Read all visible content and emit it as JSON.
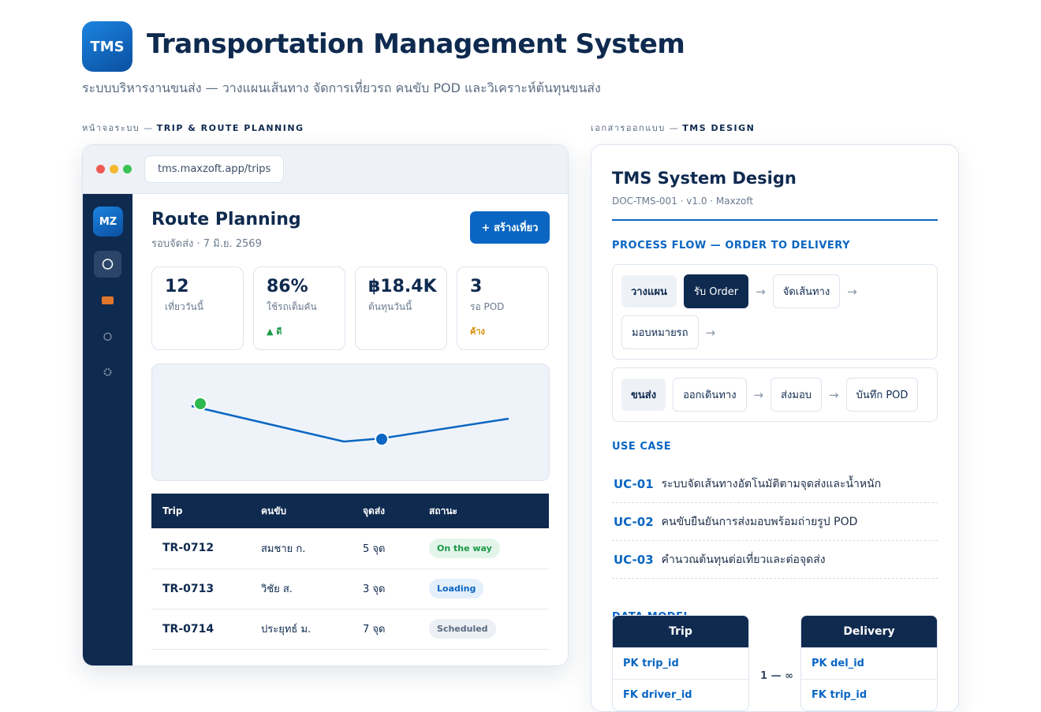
{
  "header": {
    "logo": "TMS",
    "title": "Transportation Management System",
    "subtitle": "ระบบบริหารงานขนส่ง — วางแผนเส้นทาง จัดการเที่ยวรถ คนขับ POD และวิเคราะห์ต้นทุนขนส่ง"
  },
  "left": {
    "label_prefix": "หน้าจอระบบ —",
    "label": "TRIP & ROUTE PLANNING",
    "url": "tms.maxzoft.app/trips",
    "avatar": "MZ",
    "title": "Route Planning",
    "subtitle": "รอบจัดส่ง · 7 มิ.ย. 2569",
    "button": "+ สร้างเที่ยว",
    "kpis": [
      {
        "value": "12",
        "label": "เที่ยววันนี้"
      },
      {
        "value": "86%",
        "label": "ใช้รถเต็มคัน",
        "note": "▲ ดี"
      },
      {
        "value": "฿18.4K",
        "label": "ต้นทุนวันนี้"
      },
      {
        "value": "3",
        "label": "รอ POD",
        "note": "ค้าง"
      }
    ],
    "table": {
      "headers": [
        "Trip",
        "คนขับ",
        "จุดส่ง",
        "สถานะ"
      ],
      "rows": [
        [
          "TR-0712",
          "สมชาย ก.",
          "5 จุด",
          "On the way"
        ],
        [
          "TR-0713",
          "วิชัย ส.",
          "3 จุด",
          "Loading"
        ],
        [
          "TR-0714",
          "ประยุทธ์ ม.",
          "7 จุด",
          "Scheduled"
        ]
      ]
    }
  },
  "right": {
    "label_prefix": "เอกสารออกแบบ —",
    "label": "TMS DESIGN",
    "title": "TMS System Design",
    "meta": "DOC-TMS-001 · v1.0 · Maxzoft",
    "process": {
      "heading": "PROCESS FLOW — ORDER TO DELIVERY",
      "lanes": [
        {
          "name": "วางแผน",
          "steps": [
            "รับ Order",
            "จัดเส้นทาง",
            "มอบหมายรถ"
          ]
        },
        {
          "name": "ขนส่ง",
          "steps": [
            "ออกเดินทาง",
            "ส่งมอบ",
            "บันทึก POD"
          ]
        }
      ]
    },
    "use_case": {
      "heading": "USE CASE",
      "items": [
        {
          "id": "UC-01",
          "text": "ระบบจัดเส้นทางอัตโนมัติตามจุดส่งและน้ำหนัก"
        },
        {
          "id": "UC-02",
          "text": "คนขับยืนยันการส่งมอบพร้อมถ่ายรูป POD"
        },
        {
          "id": "UC-03",
          "text": "คำนวณต้นทุนต่อเที่ยวและต่อจุดส่ง"
        }
      ]
    },
    "data_model": {
      "heading": "DATA MODEL",
      "relation": "1 — ∞",
      "entities": [
        {
          "name": "Trip",
          "fields": [
            "PK trip_id",
            "FK driver_id"
          ]
        },
        {
          "name": "Delivery",
          "fields": [
            "PK del_id",
            "FK trip_id"
          ]
        }
      ]
    }
  }
}
